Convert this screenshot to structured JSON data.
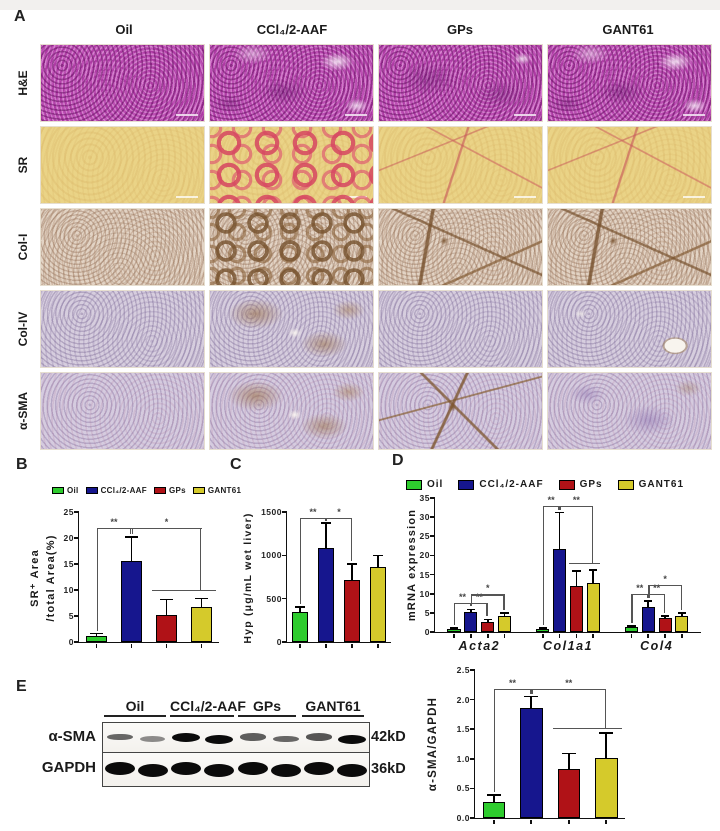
{
  "panel_a": {
    "label": "A",
    "column_headers": [
      "Oil",
      "CCl₄/2-AAF",
      "GPs",
      "GANT61"
    ],
    "row_labels": [
      "H&E",
      "SR",
      "Col-I",
      "Col-IV",
      "α-SMA"
    ],
    "stain_base_colors": {
      "H&E": "#bd50b4",
      "SR": "#ead386",
      "Col-I": "#e2d3c4",
      "Col-IV": "#d6cdde",
      "α-SMA": "#d5cbdf"
    }
  },
  "panel_b": {
    "label": "B"
  },
  "panel_c": {
    "label": "C"
  },
  "panel_d": {
    "label": "D"
  },
  "panel_e": {
    "label": "E",
    "blot": {
      "groups": [
        "Oil",
        "CCl₄/2-AAF",
        "GPs",
        "GANT61"
      ],
      "row_labels": [
        "α-SMA",
        "GAPDH"
      ],
      "sizes": [
        "42kD",
        "36kD"
      ],
      "lanes_per_group": 2,
      "band_intensity_asma": [
        0.5,
        0.3,
        1,
        1,
        0.55,
        0.5,
        0.6,
        1
      ],
      "band_intensity_gapdh": [
        1,
        1,
        1,
        1,
        1,
        1,
        1,
        1
      ]
    }
  },
  "group_colors": [
    "#2ecc2e",
    "#16168e",
    "#b01217",
    "#d5ca2b"
  ],
  "chart_data": [
    {
      "id": "chartB",
      "type": "bar",
      "categories": [
        "Oil",
        "CCl₄/2-AAF",
        "GPs",
        "GANT61"
      ],
      "legend": [
        "Oil",
        "CCl₄/2-AAF",
        "GPs",
        "GANT61"
      ],
      "legend_position": "top",
      "colors": [
        "#2ecc2e",
        "#16168e",
        "#b01217",
        "#d5ca2b"
      ],
      "values": [
        1.2,
        15.5,
        5.2,
        6.7
      ],
      "errors": [
        0.4,
        4.7,
        3.0,
        1.7
      ],
      "ylabel_lines": [
        "SR⁺ Area",
        "/total Area(%)"
      ],
      "ylim": [
        0,
        25
      ],
      "yticks": [
        0,
        5,
        10,
        15,
        20,
        25
      ],
      "grid": false,
      "significance": [
        {
          "a": 0,
          "b": 1,
          "y": 22,
          "label": "**"
        },
        {
          "a": 1,
          "b": 3,
          "y": 22,
          "gy": 10,
          "group": [
            2,
            3
          ],
          "label": "*"
        }
      ]
    },
    {
      "id": "chartC",
      "type": "bar",
      "categories": [
        "Oil",
        "CCl₄/2-AAF",
        "GPs",
        "GANT61"
      ],
      "colors": [
        "#2ecc2e",
        "#16168e",
        "#b01217",
        "#d5ca2b"
      ],
      "values": [
        350,
        1080,
        710,
        860
      ],
      "errors": [
        55,
        290,
        190,
        140
      ],
      "ylabel": "Hyp (μg/mL wet liver)",
      "ylim": [
        0,
        1500
      ],
      "yticks": [
        0,
        500,
        1000,
        1500
      ],
      "grid": false,
      "significance": [
        {
          "a": 0,
          "b": 1,
          "y": 1430,
          "label": "**"
        },
        {
          "a": 1,
          "b": 2,
          "y": 1430,
          "label": "*"
        }
      ]
    },
    {
      "id": "chartD",
      "type": "grouped_bar",
      "categories": [
        "Acta2",
        "Col1a1",
        "Col4"
      ],
      "legend": [
        "Oil",
        "CCl₄/2-AAF",
        "GPs",
        "GANT61"
      ],
      "legend_position": "top",
      "colors": [
        "#2ecc2e",
        "#16168e",
        "#b01217",
        "#d5ca2b"
      ],
      "series": [
        {
          "name": "Oil",
          "values": [
            0.9,
            0.8,
            1.2
          ],
          "errors": [
            0.2,
            0.2,
            0.3
          ]
        },
        {
          "name": "CCl₄/2-AAF",
          "values": [
            5.3,
            21.8,
            6.6
          ],
          "errors": [
            0.6,
            9.4,
            1.5
          ]
        },
        {
          "name": "GPs",
          "values": [
            2.6,
            12.0,
            3.6
          ],
          "errors": [
            0.7,
            4.0,
            0.6
          ]
        },
        {
          "name": "GANT61",
          "values": [
            4.1,
            12.7,
            4.2
          ],
          "errors": [
            0.9,
            3.5,
            0.8
          ]
        }
      ],
      "ylabel": "mRNA expression",
      "ylim": [
        0,
        35
      ],
      "yticks": [
        0,
        5,
        10,
        15,
        20,
        25,
        30,
        35
      ],
      "grid": false,
      "significance": [
        {
          "cat": 0,
          "a": 0,
          "b": 1,
          "y": 7.6,
          "label": "**"
        },
        {
          "cat": 0,
          "a": 1,
          "b": 2,
          "y": 7.6,
          "label": "**"
        },
        {
          "cat": 0,
          "a": 1,
          "b": 3,
          "y": 9.8,
          "label": "*"
        },
        {
          "cat": 1,
          "a": 0,
          "b": 1,
          "y": 33,
          "label": "**"
        },
        {
          "cat": 1,
          "a": 1,
          "b": 3,
          "y": 33,
          "gy": 18,
          "group": [
            2,
            3
          ],
          "label": "**"
        },
        {
          "cat": 2,
          "a": 0,
          "b": 1,
          "y": 10,
          "label": "**"
        },
        {
          "cat": 2,
          "a": 1,
          "b": 2,
          "y": 10,
          "label": "**"
        },
        {
          "cat": 2,
          "a": 1,
          "b": 3,
          "y": 12.3,
          "label": "*"
        }
      ]
    },
    {
      "id": "chartE",
      "type": "bar",
      "categories": [
        "Oil",
        "CCl₄/2-AAF",
        "GPs",
        "GANT61"
      ],
      "colors": [
        "#2ecc2e",
        "#16168e",
        "#b01217",
        "#d5ca2b"
      ],
      "values": [
        0.27,
        1.85,
        0.82,
        1.02
      ],
      "errors": [
        0.12,
        0.2,
        0.27,
        0.42
      ],
      "ylabel": "α-SMA/GAPDH",
      "ylim": [
        0,
        2.5
      ],
      "yticks": [
        0,
        0.5,
        1,
        1.5,
        2,
        2.5
      ],
      "ydp": 1,
      "grid": false,
      "significance": [
        {
          "a": 0,
          "b": 1,
          "y": 2.18,
          "label": "**"
        },
        {
          "a": 1,
          "b": 3,
          "y": 2.18,
          "gy": 1.52,
          "group": [
            2,
            3
          ],
          "label": "**"
        }
      ]
    }
  ]
}
